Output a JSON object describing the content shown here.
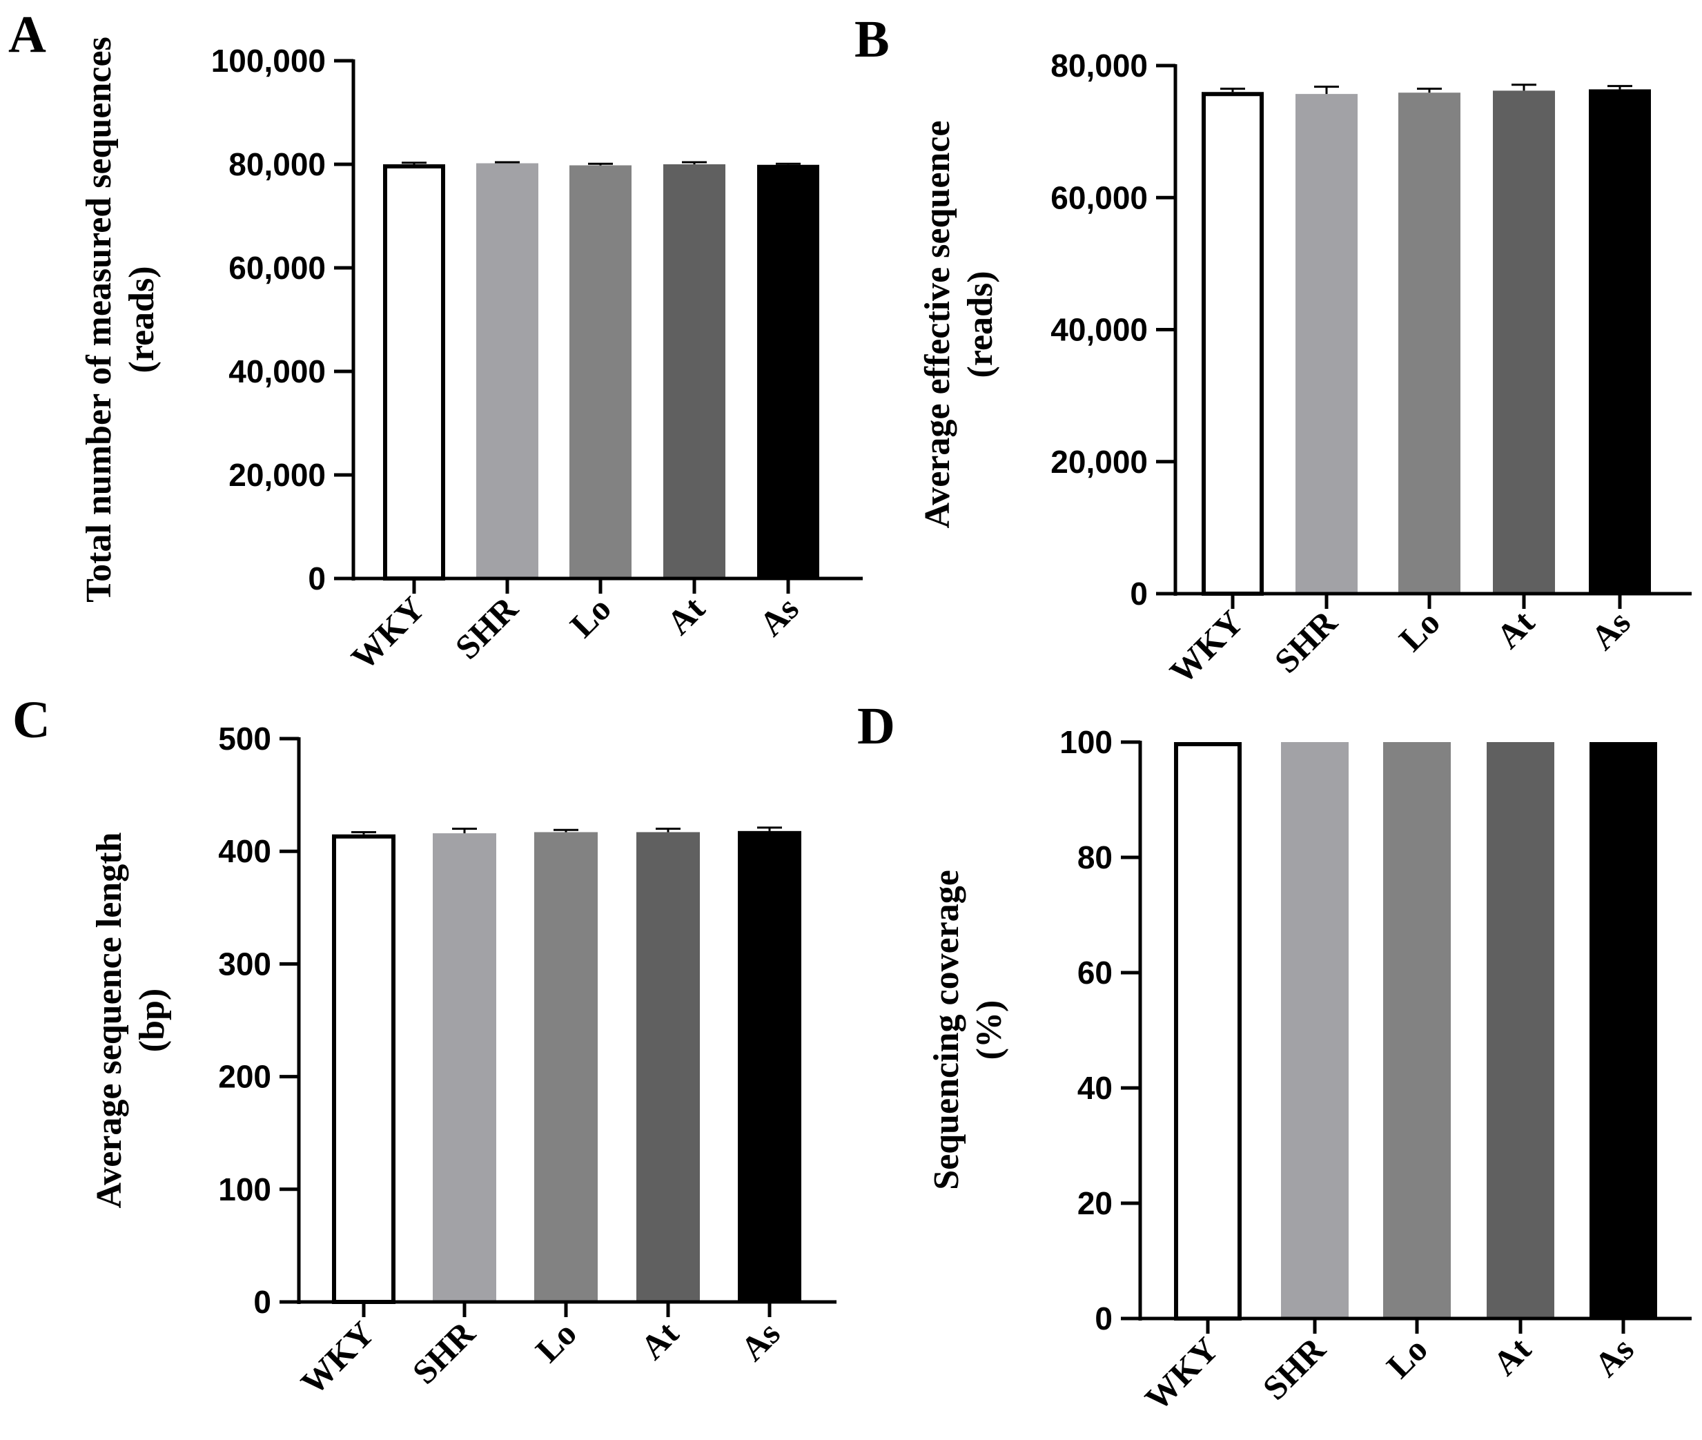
{
  "figure": {
    "colors": {
      "WKY": "#ffffff",
      "SHR": "#a2a2a6",
      "Lo": "#828282",
      "At": "#606060",
      "As": "#000000"
    }
  },
  "chart_data": [
    {
      "panel": "A",
      "type": "bar",
      "categories": [
        "WKY",
        "SHR",
        "Lo",
        "At",
        "As"
      ],
      "values": [
        80000,
        80200,
        79800,
        80000,
        79900
      ],
      "errors": [
        300,
        200,
        300,
        400,
        200
      ],
      "ylabel_lines": [
        "Total number of measured sequences",
        "(reads)"
      ],
      "ylim": [
        0,
        100000
      ],
      "yticks": [
        0,
        20000,
        40000,
        60000,
        80000,
        100000
      ],
      "ytick_labels": [
        "0",
        "20,000",
        "40,000",
        "60,000",
        "80,000",
        "100,000"
      ]
    },
    {
      "panel": "B",
      "type": "bar",
      "categories": [
        "WKY",
        "SHR",
        "Lo",
        "At",
        "As"
      ],
      "values": [
        76000,
        75700,
        75900,
        76200,
        76400
      ],
      "errors": [
        500,
        1100,
        600,
        900,
        500
      ],
      "ylabel_lines": [
        "Average effective sequence",
        "(reads)"
      ],
      "ylim": [
        0,
        80000
      ],
      "yticks": [
        0,
        20000,
        40000,
        60000,
        80000
      ],
      "ytick_labels": [
        "0",
        "20,000",
        "40,000",
        "60,000",
        "80,000"
      ]
    },
    {
      "panel": "C",
      "type": "bar",
      "categories": [
        "WKY",
        "SHR",
        "Lo",
        "At",
        "As"
      ],
      "values": [
        415,
        416,
        417,
        417,
        418
      ],
      "errors": [
        2,
        4,
        2,
        3,
        3
      ],
      "ylabel_lines": [
        "Average sequence length",
        "(bp)"
      ],
      "ylim": [
        0,
        500
      ],
      "yticks": [
        0,
        100,
        200,
        300,
        400,
        500
      ],
      "ytick_labels": [
        "0",
        "100",
        "200",
        "300",
        "400",
        "500"
      ]
    },
    {
      "panel": "D",
      "type": "bar",
      "categories": [
        "WKY",
        "SHR",
        "Lo",
        "At",
        "As"
      ],
      "values": [
        100,
        100,
        100,
        100,
        100
      ],
      "errors": [
        0,
        0,
        0,
        0,
        0
      ],
      "ylabel_lines": [
        "Sequencing coverage",
        "(%)"
      ],
      "ylim": [
        0,
        100
      ],
      "yticks": [
        0,
        20,
        40,
        60,
        80,
        100
      ],
      "ytick_labels": [
        "0",
        "20",
        "40",
        "60",
        "80",
        "100"
      ]
    }
  ]
}
